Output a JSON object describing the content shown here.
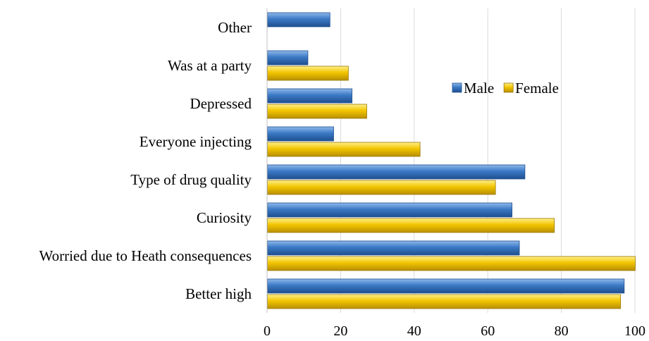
{
  "chart_data": {
    "type": "bar",
    "orientation": "horizontal",
    "categories": [
      "Other",
      "Was at a party",
      "Depressed",
      "Everyone injecting",
      "Type of drug quality",
      "Curiosity",
      "Worried due to Heath consequences",
      "Better high"
    ],
    "series": [
      {
        "name": "Male",
        "values": [
          17,
          11,
          23,
          18,
          70,
          66.5,
          68.5,
          97
        ]
      },
      {
        "name": "Female",
        "values": [
          null,
          22,
          27,
          41.5,
          62,
          78,
          100,
          96
        ]
      }
    ],
    "xlim": [
      0,
      100
    ],
    "xticks": [
      "0",
      "20",
      "40",
      "60",
      "80",
      "100"
    ],
    "grid": "vertical",
    "legend_position": "top-right",
    "colors": {
      "Male": "#3b79c6",
      "Female": "#f2c500"
    },
    "title": "",
    "xlabel": "",
    "ylabel": ""
  }
}
